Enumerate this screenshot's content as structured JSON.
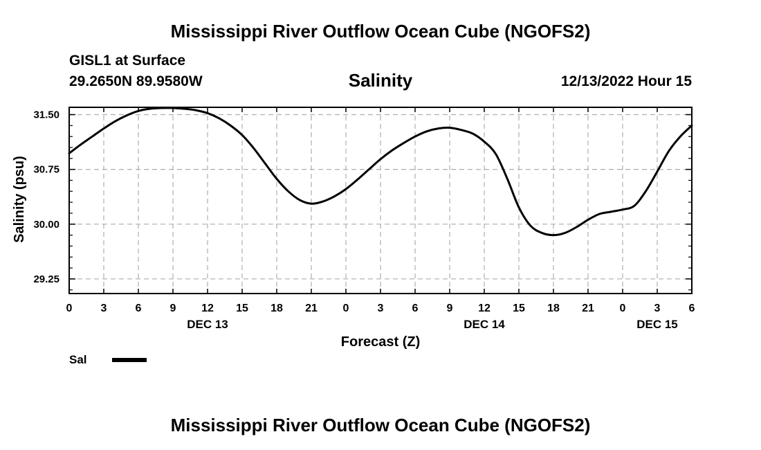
{
  "header": {
    "title": "Mississippi River Outflow Ocean Cube (NGOFS2)",
    "station": "GISL1 at Surface",
    "coords": "29.2650N  89.9580W",
    "variable": "Salinity",
    "datetime": "12/13/2022 Hour 15"
  },
  "footer": {
    "title": "Mississippi River Outflow Ocean Cube (NGOFS2)"
  },
  "legend": {
    "series_label": "Sal",
    "color": "#000000"
  },
  "chart_data": {
    "type": "line",
    "title": "Salinity",
    "xlabel": "Forecast (Z)",
    "ylabel": "Salinity (psu)",
    "xlim": [
      0,
      54
    ],
    "ylim": [
      29.05,
      31.6
    ],
    "grid": true,
    "x_ticks": [
      {
        "x": 0,
        "label": "0"
      },
      {
        "x": 3,
        "label": "3"
      },
      {
        "x": 6,
        "label": "6"
      },
      {
        "x": 9,
        "label": "9"
      },
      {
        "x": 12,
        "label": "12"
      },
      {
        "x": 15,
        "label": "15"
      },
      {
        "x": 18,
        "label": "18"
      },
      {
        "x": 21,
        "label": "21"
      },
      {
        "x": 24,
        "label": "0"
      },
      {
        "x": 27,
        "label": "3"
      },
      {
        "x": 30,
        "label": "6"
      },
      {
        "x": 33,
        "label": "9"
      },
      {
        "x": 36,
        "label": "12"
      },
      {
        "x": 39,
        "label": "15"
      },
      {
        "x": 42,
        "label": "18"
      },
      {
        "x": 45,
        "label": "21"
      },
      {
        "x": 48,
        "label": "0"
      },
      {
        "x": 51,
        "label": "3"
      },
      {
        "x": 54,
        "label": "6"
      }
    ],
    "date_labels": [
      {
        "x": 12,
        "label": "DEC 13"
      },
      {
        "x": 36,
        "label": "DEC 14"
      },
      {
        "x": 51,
        "label": "DEC 15"
      }
    ],
    "y_ticks": [
      {
        "y": 29.25,
        "label": "29.25"
      },
      {
        "y": 30.0,
        "label": "30.00"
      },
      {
        "y": 30.75,
        "label": "30.75"
      },
      {
        "y": 31.5,
        "label": "31.50"
      }
    ],
    "series": [
      {
        "name": "Sal",
        "x": [
          0,
          1,
          2,
          3,
          4,
          5,
          6,
          7,
          8,
          9,
          10,
          11,
          12,
          13,
          14,
          15,
          16,
          17,
          18,
          19,
          20,
          21,
          22,
          23,
          24,
          25,
          26,
          27,
          28,
          29,
          30,
          31,
          32,
          33,
          34,
          35,
          36,
          37,
          38,
          39,
          40,
          41,
          42,
          43,
          44,
          45,
          46,
          47,
          48,
          49,
          50,
          51,
          52,
          53,
          54
        ],
        "values": [
          30.97,
          31.09,
          31.2,
          31.31,
          31.41,
          31.49,
          31.55,
          31.58,
          31.59,
          31.59,
          31.58,
          31.56,
          31.52,
          31.45,
          31.35,
          31.22,
          31.04,
          30.83,
          30.62,
          30.45,
          30.33,
          30.28,
          30.31,
          30.38,
          30.48,
          30.61,
          30.75,
          30.89,
          31.01,
          31.11,
          31.2,
          31.27,
          31.31,
          31.32,
          31.29,
          31.24,
          31.13,
          30.96,
          30.62,
          30.23,
          29.98,
          29.88,
          29.85,
          29.88,
          29.96,
          30.06,
          30.14,
          30.17,
          30.2,
          30.25,
          30.45,
          30.72,
          31.0,
          31.2,
          31.35
        ]
      }
    ]
  }
}
